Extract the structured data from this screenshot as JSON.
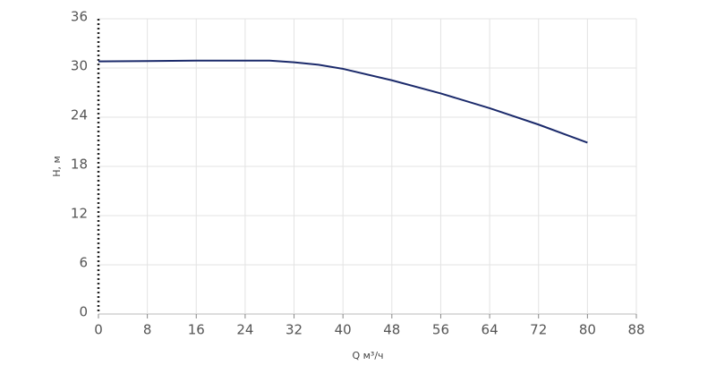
{
  "chart_data": {
    "type": "line",
    "xlabel": "Q м³/ч",
    "ylabel": "H, м",
    "x": [
      0,
      8,
      16,
      24,
      28,
      32,
      36,
      40,
      48,
      56,
      64,
      72,
      80
    ],
    "series": [
      {
        "name": "H",
        "color": "#1b2a6b",
        "values": [
          30.8,
          30.85,
          30.9,
          30.9,
          30.9,
          30.7,
          30.4,
          29.9,
          28.5,
          26.9,
          25.1,
          23.1,
          20.9
        ]
      }
    ],
    "xlim": [
      0,
      88
    ],
    "xticks": [
      0,
      8,
      16,
      24,
      32,
      40,
      48,
      56,
      64,
      72,
      80,
      88
    ],
    "ylim": [
      0,
      36
    ],
    "yticks": [
      0,
      6,
      12,
      18,
      24,
      30,
      36
    ],
    "grid": true
  }
}
